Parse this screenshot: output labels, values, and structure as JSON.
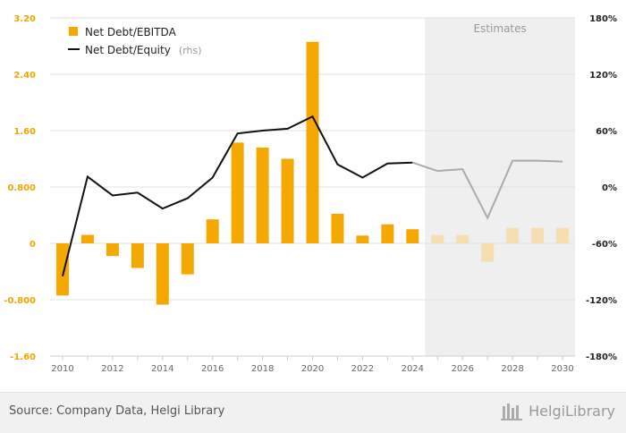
{
  "chart_data": {
    "type": "bar",
    "estimates_label": "Estimates",
    "estimates_from": 2025,
    "x": [
      2010,
      2011,
      2012,
      2013,
      2014,
      2015,
      2016,
      2017,
      2018,
      2019,
      2020,
      2021,
      2022,
      2023,
      2024,
      2025,
      2026,
      2027,
      2028,
      2029,
      2030
    ],
    "x_tick_labels": [
      "2010",
      "2012",
      "2014",
      "2016",
      "2018",
      "2020",
      "2022",
      "2024",
      "2026",
      "2028",
      "2030"
    ],
    "left_axis": {
      "ylim": [
        -1.6,
        3.2
      ],
      "ticks": [
        "3.20",
        "2.40",
        "1.60",
        "0.800",
        "0",
        "-0.800",
        "-1.60"
      ]
    },
    "right_axis": {
      "ylim": [
        -180,
        180
      ],
      "ticks": [
        "180%",
        "120%",
        "60%",
        "0%",
        "-60%",
        "-120%",
        "-180%"
      ]
    },
    "series": [
      {
        "name": "Net Debt/EBITDA",
        "axis": "left",
        "type": "bar",
        "color": "#f5a800",
        "estimate_color": "#f5deb0",
        "values": [
          -0.74,
          0.12,
          -0.18,
          -0.35,
          -0.87,
          -0.44,
          0.34,
          1.43,
          1.36,
          1.2,
          2.86,
          0.42,
          0.11,
          0.27,
          0.2,
          0.12,
          0.12,
          -0.26,
          0.22,
          0.22,
          0.22
        ]
      },
      {
        "name": "Net Debt/Equity",
        "name_suffix": "(rhs)",
        "axis": "right",
        "type": "line",
        "color": "#111111",
        "estimate_color": "#aaaaaa",
        "values": [
          -95,
          11,
          -9,
          -6,
          -23,
          -12,
          10,
          57,
          60,
          62,
          75,
          24,
          10,
          25,
          26,
          17,
          19,
          -33,
          28,
          28,
          27
        ]
      }
    ]
  },
  "footer": {
    "source": "Source: Company Data, Helgi Library",
    "brand": "HelgiLibrary"
  }
}
